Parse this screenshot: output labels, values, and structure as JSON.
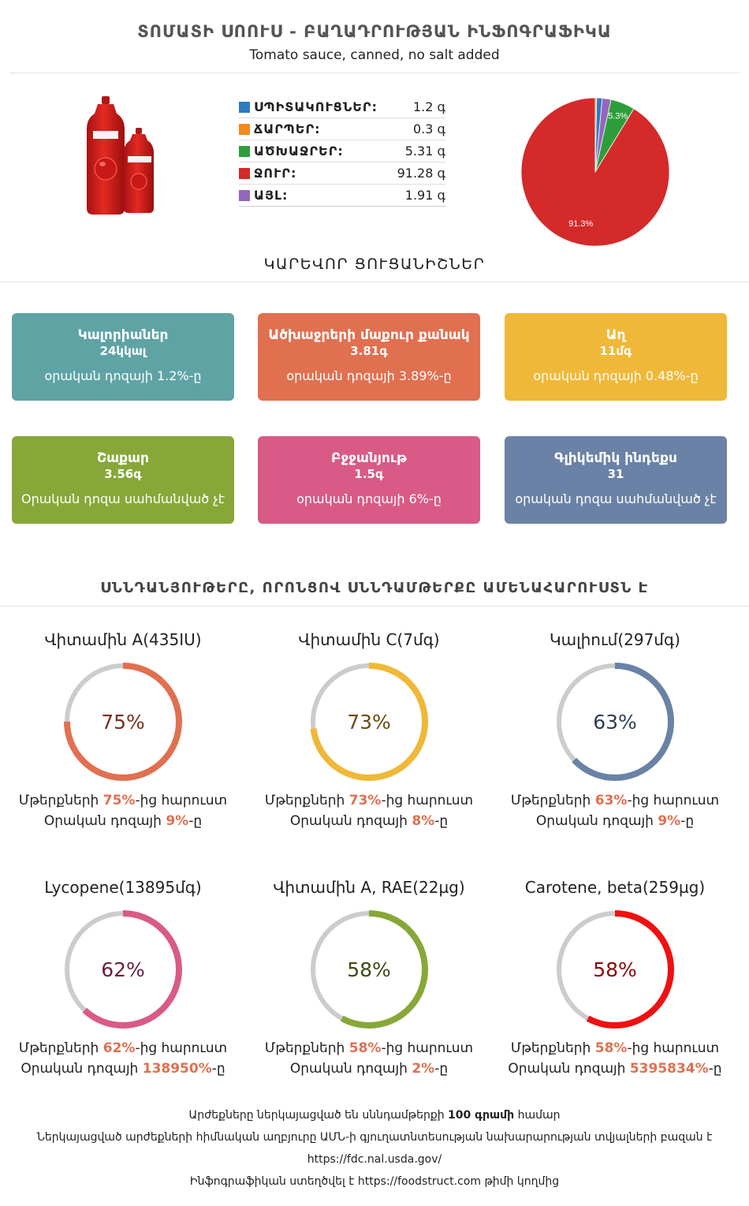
{
  "header": {
    "title": "ՏՈՄԱՏԻ ՍՈՈՒՍ - ԲԱՂԱԴՐՈՒԹՅԱՆ ԻՆՖՈԳՐԱՖԻԿԱ",
    "subtitle": "Tomato sauce, canned, no salt added"
  },
  "macros": [
    {
      "label": "ՍՊԻՏԱԿՈՒՑՆԵՐ:",
      "value": "1.2 գ",
      "color": "#2f7bbf"
    },
    {
      "label": "ՃԱՐՊԵՐ:",
      "value": "0.3 գ",
      "color": "#f28a1e"
    },
    {
      "label": "ԱԾԽԱՋՐԵՐ:",
      "value": "5.31 գ",
      "color": "#2e9e3a"
    },
    {
      "label": "ՋՈՒՐ:",
      "value": "91.28 գ",
      "color": "#d42a2a"
    },
    {
      "label": "ԱՅԼ:",
      "value": "1.91 գ",
      "color": "#9467bd"
    }
  ],
  "chart_data": {
    "type": "pie",
    "labels": [
      "Water",
      "Carbohydrates",
      "Other",
      "Protein",
      "Fat"
    ],
    "values": [
      91.28,
      5.31,
      1.91,
      1.2,
      0.3
    ],
    "colors": [
      "#d42a2a",
      "#2e9e3a",
      "#9467bd",
      "#2f7bbf",
      "#f28a1e"
    ],
    "slice_labels": [
      "91.3%",
      "5.3%",
      "",
      "",
      ""
    ]
  },
  "key_facts": {
    "title": "ԿԱՐԵՎՈՐ ՑՈՒՑԱՆԻՇՆԵՐ",
    "cards": [
      {
        "name": "Կալորիաներ",
        "value": "24կկալ",
        "pct": "օրական դոզայի 1.2%-ը",
        "color": "#5fa3a5"
      },
      {
        "name": "Ածխաջրերի մաքուր քանակ",
        "value": "3.81գ",
        "pct": "օրական դոզայի 3.89%-ը",
        "color": "#e07050"
      },
      {
        "name": "Աղ",
        "value": "11մգ",
        "pct": "օրական դոզայի 0.48%-ը",
        "color": "#f0b838"
      },
      {
        "name": "Շաքար",
        "value": "3.56գ",
        "pct": "Օրական դոզա սահմանված չէ",
        "color": "#87a838"
      },
      {
        "name": "Բջջանյութ",
        "value": "1.5գ",
        "pct": "օրական դոզայի 6%-ը",
        "color": "#d95a86"
      },
      {
        "name": "Գլիկեմիկ ինդեքս",
        "value": "31",
        "pct": "օրական դոզա սահմանված չէ",
        "color": "#6a82a5"
      }
    ]
  },
  "nutrients": {
    "title": "ՍՆՆԴԱՆՅՈՒԹԵՐԸ, ՈՐՈՆՑՈՎ ՍՆՆԴԱՄԹԵՐՔԸ ԱՄԵՆԱՀԱՐՈՒՍՏՆ Է",
    "prefix1": "Մթերքների ",
    "suffix1": "-ից հարուստ",
    "prefix2": "Օրական դոզայի ",
    "suffix2": "-ը",
    "items": [
      {
        "name": "Վիտամին A(435IU)",
        "percent": 75,
        "pct_label": "75%",
        "daily": "9%",
        "color": "#e07050",
        "text_color": "#7a3020"
      },
      {
        "name": "Վիտամին C(7մգ)",
        "percent": 73,
        "pct_label": "73%",
        "daily": "8%",
        "color": "#f0b838",
        "text_color": "#6a4a10"
      },
      {
        "name": "Կալիում(297մգ)",
        "percent": 63,
        "pct_label": "63%",
        "daily": "9%",
        "color": "#6a82a5",
        "text_color": "#2c3e55"
      },
      {
        "name": "Lycopene(13895մգ)",
        "percent": 62,
        "pct_label": "62%",
        "daily": "138950%",
        "color": "#d95a86",
        "text_color": "#6a2040"
      },
      {
        "name": "Վիտամին A, RAE(22µg)",
        "percent": 58,
        "pct_label": "58%",
        "daily": "2%",
        "color": "#87a838",
        "text_color": "#3c4a12"
      },
      {
        "name": "Carotene, beta(259µg)",
        "percent": 58,
        "pct_label": "58%",
        "daily": "5395834%",
        "color": "#ee1111",
        "text_color": "#8a0808"
      }
    ]
  },
  "footer": {
    "line1_pre": "Արժեքները ներկայացված են սննդամթերքի ",
    "line1_bold": "100 գրամի",
    "line1_post": " համար",
    "line2": "Ներկայացված արժեքների հիմնական աղբյուրը ԱՄՆ-ի գյուղատնտեսության նախարարության տվյալների բազան է",
    "line3": "https://fdc.nal.usda.gov/",
    "line4": "Ինֆոգրաֆիկան ստեղծվել է https://foodstruct.com թիմի կողմից"
  }
}
